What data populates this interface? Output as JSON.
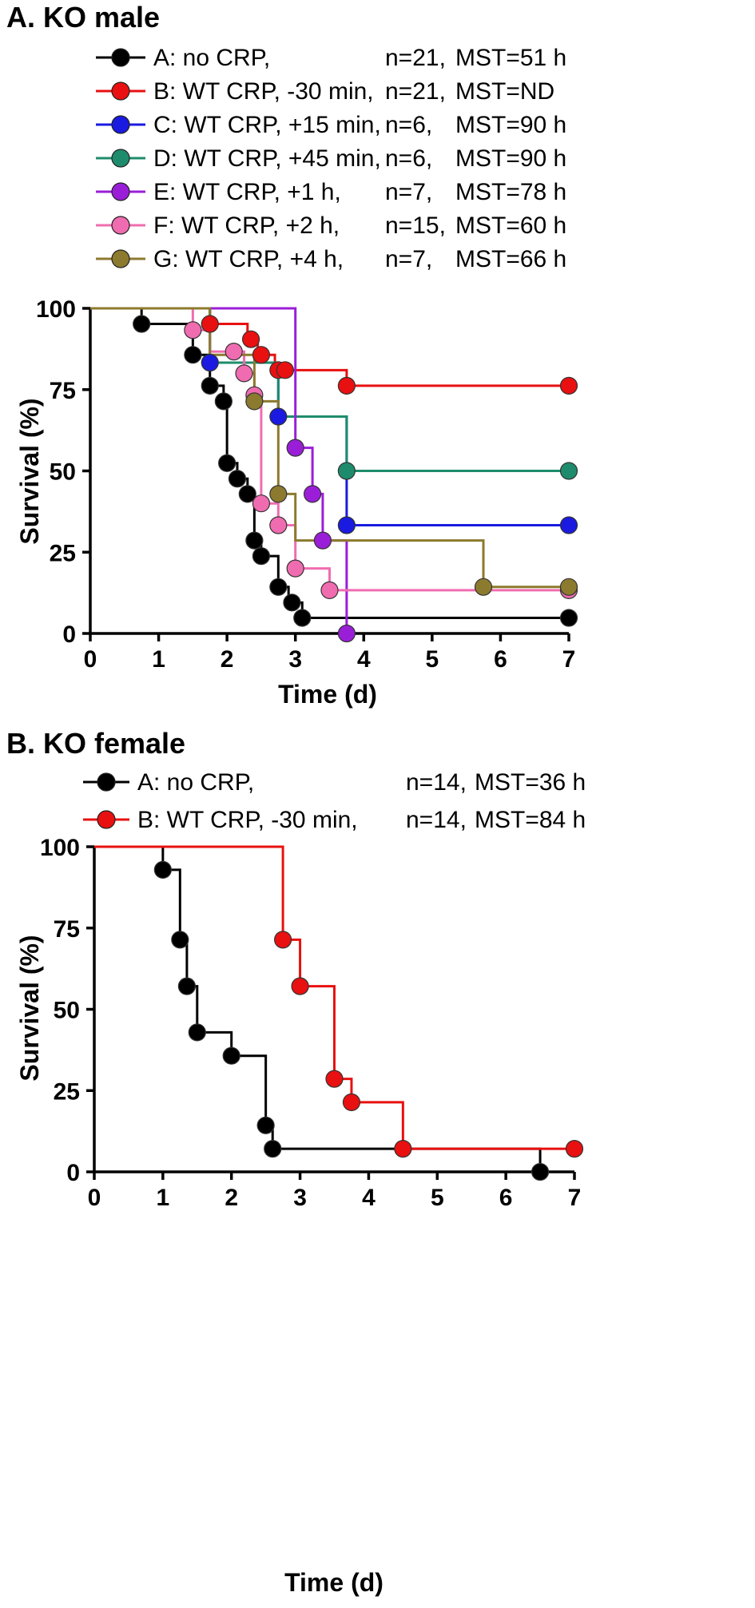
{
  "chart_data": [
    {
      "type": "line",
      "subtype": "kaplan-meier step",
      "title": "A. KO male",
      "xlabel": "Time (d)",
      "ylabel": "Survival (%)",
      "xlim": [
        0,
        7
      ],
      "ylim": [
        0,
        100
      ],
      "xticks": [
        "0",
        "1",
        "2",
        "3",
        "4",
        "5",
        "6",
        "7"
      ],
      "yticks": [
        "0",
        "25",
        "50",
        "75",
        "100"
      ],
      "grid": false,
      "legend_position": "top",
      "series": [
        {
          "name": "A",
          "label": "A: no CRP,",
          "n": "n=21,",
          "mst": "MST=51 h",
          "color": "#000000",
          "steps": [
            [
              0,
              100
            ],
            [
              0.75,
              95.2
            ],
            [
              1.5,
              85.7
            ],
            [
              1.75,
              76.2
            ],
            [
              1.95,
              71.4
            ],
            [
              2.0,
              52.4
            ],
            [
              2.15,
              47.6
            ],
            [
              2.3,
              42.9
            ],
            [
              2.4,
              28.6
            ],
            [
              2.5,
              23.8
            ],
            [
              2.75,
              14.3
            ],
            [
              2.9,
              9.5
            ],
            [
              3.1,
              4.8
            ],
            [
              7,
              4.8
            ]
          ],
          "markers": [
            [
              0.75,
              95.2
            ],
            [
              1.5,
              85.7
            ],
            [
              1.75,
              76.2
            ],
            [
              1.95,
              71.4
            ],
            [
              2.0,
              52.4
            ],
            [
              2.15,
              47.6
            ],
            [
              2.3,
              42.9
            ],
            [
              2.4,
              28.6
            ],
            [
              2.5,
              23.8
            ],
            [
              2.75,
              14.3
            ],
            [
              2.95,
              9.5
            ],
            [
              3.1,
              4.8
            ],
            [
              7,
              4.8
            ]
          ]
        },
        {
          "name": "B",
          "label": "B: WT CRP, -30 min,",
          "n": "n=21,",
          "mst": "MST=ND",
          "color": "#e81010",
          "steps": [
            [
              0,
              100
            ],
            [
              1.75,
              95.2
            ],
            [
              2.3,
              90.5
            ],
            [
              2.45,
              85.7
            ],
            [
              2.7,
              81.0
            ],
            [
              3.75,
              76.2
            ],
            [
              7,
              76.2
            ]
          ],
          "markers": [
            [
              1.75,
              95.2
            ],
            [
              2.35,
              90.5
            ],
            [
              2.5,
              85.7
            ],
            [
              2.75,
              81.0
            ],
            [
              2.85,
              81.0
            ],
            [
              3.75,
              76.2
            ],
            [
              7,
              76.2
            ]
          ]
        },
        {
          "name": "C",
          "label": "C: WT CRP, +15 min,",
          "n": "n=6,",
          "mst": "MST=90 h",
          "color": "#1a1ae0",
          "steps": [
            [
              0,
              100
            ],
            [
              1.75,
              83.3
            ],
            [
              2.75,
              66.7
            ],
            [
              3.75,
              33.3
            ],
            [
              7,
              33.3
            ]
          ],
          "markers": [
            [
              1.75,
              83.3
            ],
            [
              2.75,
              66.7
            ],
            [
              3.75,
              33.3
            ],
            [
              7,
              33.3
            ]
          ]
        },
        {
          "name": "D",
          "label": "D: WT CRP, +45 min,",
          "n": "n=6,",
          "mst": "MST=90 h",
          "color": "#1e8c6c",
          "steps": [
            [
              0,
              100
            ],
            [
              1.75,
              83.3
            ],
            [
              2.75,
              66.7
            ],
            [
              3.75,
              50
            ],
            [
              7,
              50
            ]
          ],
          "markers": [
            [
              3.75,
              50
            ],
            [
              7,
              50
            ]
          ]
        },
        {
          "name": "E",
          "label": "E: WT CRP, +1 h,",
          "n": "n=7,",
          "mst": "MST=78 h",
          "color": "#9a1ed8",
          "steps": [
            [
              0,
              100
            ],
            [
              3.0,
              57.1
            ],
            [
              3.25,
              42.9
            ],
            [
              3.4,
              28.6
            ],
            [
              3.75,
              0
            ]
          ],
          "markers": [
            [
              3.0,
              57.1
            ],
            [
              3.25,
              42.9
            ],
            [
              3.4,
              28.6
            ],
            [
              3.75,
              0
            ]
          ]
        },
        {
          "name": "F",
          "label": "F: WT CRP, +2 h,",
          "n": "n=15,",
          "mst": "MST=60 h",
          "color": "#f06cb0",
          "steps": [
            [
              0,
              100
            ],
            [
              1.5,
              93.3
            ],
            [
              1.75,
              86.7
            ],
            [
              2.25,
              80
            ],
            [
              2.4,
              73.3
            ],
            [
              2.5,
              40
            ],
            [
              2.75,
              33.3
            ],
            [
              3.0,
              20
            ],
            [
              3.5,
              13.3
            ],
            [
              7,
              13.3
            ]
          ],
          "markers": [
            [
              1.5,
              93.3
            ],
            [
              2.1,
              86.7
            ],
            [
              2.25,
              80
            ],
            [
              2.4,
              73.3
            ],
            [
              2.5,
              40
            ],
            [
              2.75,
              33.3
            ],
            [
              3.0,
              20
            ],
            [
              3.5,
              13.3
            ],
            [
              7,
              13.3
            ]
          ]
        },
        {
          "name": "G",
          "label": "G: WT CRP, +4 h,",
          "n": "n=7,",
          "mst": "MST=66 h",
          "color": "#8c7a2e",
          "steps": [
            [
              0,
              100
            ],
            [
              1.75,
              85.7
            ],
            [
              2.4,
              71.4
            ],
            [
              2.75,
              42.9
            ],
            [
              3.0,
              42.9
            ],
            [
              3.0,
              28.6
            ],
            [
              5.75,
              14.3
            ],
            [
              7,
              14.3
            ]
          ],
          "markers": [
            [
              2.4,
              71.4
            ],
            [
              2.75,
              42.9
            ],
            [
              5.75,
              14.3
            ],
            [
              7,
              14.3
            ]
          ]
        }
      ]
    },
    {
      "type": "line",
      "subtype": "kaplan-meier step",
      "title": "B. KO female",
      "xlabel": "Time (d)",
      "ylabel": "Survival (%)",
      "xlim": [
        0,
        7
      ],
      "ylim": [
        0,
        100
      ],
      "xticks": [
        "0",
        "1",
        "2",
        "3",
        "4",
        "5",
        "6",
        "7"
      ],
      "yticks": [
        "0",
        "25",
        "50",
        "75",
        "100"
      ],
      "grid": false,
      "legend_position": "top",
      "series": [
        {
          "name": "A",
          "label": "A: no CRP,",
          "n": "n=14,",
          "mst": "MST=36 h",
          "color": "#000000",
          "steps": [
            [
              0,
              100
            ],
            [
              1.0,
              92.9
            ],
            [
              1.25,
              71.4
            ],
            [
              1.35,
              57.1
            ],
            [
              1.5,
              42.9
            ],
            [
              2.0,
              35.7
            ],
            [
              2.5,
              14.3
            ],
            [
              2.6,
              7.1
            ],
            [
              6.5,
              0
            ]
          ],
          "markers": [
            [
              1.0,
              92.9
            ],
            [
              1.25,
              71.4
            ],
            [
              1.35,
              57.1
            ],
            [
              1.5,
              42.9
            ],
            [
              2.0,
              35.7
            ],
            [
              2.5,
              14.3
            ],
            [
              2.6,
              7.1
            ],
            [
              6.5,
              0
            ]
          ]
        },
        {
          "name": "B",
          "label": "B: WT CRP, -30 min,",
          "n": "n=14,",
          "mst": "MST=84 h",
          "color": "#e81010",
          "steps": [
            [
              0,
              100
            ],
            [
              2.75,
              71.4
            ],
            [
              3.0,
              57.1
            ],
            [
              3.5,
              28.6
            ],
            [
              3.75,
              21.4
            ],
            [
              4.5,
              7.1
            ],
            [
              7,
              7.1
            ]
          ],
          "markers": [
            [
              2.75,
              71.4
            ],
            [
              3.0,
              57.1
            ],
            [
              3.5,
              28.6
            ],
            [
              3.75,
              21.4
            ],
            [
              4.5,
              7.1
            ],
            [
              7,
              7.1
            ]
          ]
        }
      ]
    }
  ]
}
